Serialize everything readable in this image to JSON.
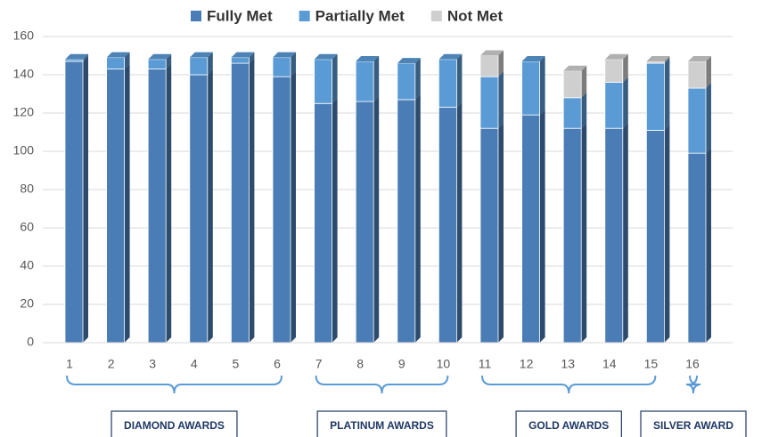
{
  "chart_data": {
    "type": "stacked_bar_3d",
    "categories": [
      "1",
      "2",
      "3",
      "4",
      "5",
      "6",
      "7",
      "8",
      "9",
      "10",
      "11",
      "12",
      "13",
      "14",
      "15",
      "16"
    ],
    "series": [
      {
        "name": "Fully Met",
        "color": "#4a7db5",
        "values": [
          147,
          143,
          143,
          140,
          146,
          139,
          125,
          126,
          127,
          123,
          112,
          119,
          112,
          112,
          111,
          99
        ]
      },
      {
        "name": "Partially Met",
        "color": "#5b9bd5",
        "values": [
          1,
          6,
          5,
          9,
          3,
          10,
          23,
          21,
          19,
          25,
          27,
          28,
          16,
          24,
          35,
          34
        ]
      },
      {
        "name": "Not Met",
        "color": "#cfcfcf",
        "values": [
          0,
          0,
          0,
          0,
          0,
          0,
          0,
          0,
          0,
          0,
          11,
          0,
          14,
          12,
          1,
          14
        ]
      }
    ],
    "ylim": [
      0,
      160
    ],
    "yticks": [
      0,
      20,
      40,
      60,
      80,
      100,
      120,
      140,
      160
    ],
    "grid": true,
    "legend": "top",
    "groups": [
      {
        "label": "DIAMOND AWARDS",
        "from": 0,
        "to": 5
      },
      {
        "label": "PLATINUM AWARDS",
        "from": 6,
        "to": 9
      },
      {
        "label": "GOLD AWARDS",
        "from": 10,
        "to": 14
      },
      {
        "label": "SILVER AWARD",
        "from": 15,
        "to": 15
      }
    ]
  }
}
